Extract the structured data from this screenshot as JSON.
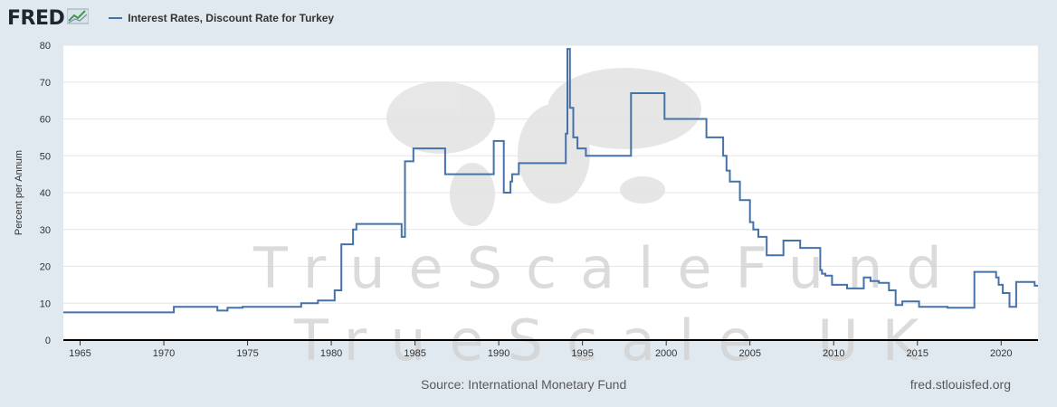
{
  "header": {
    "logo_text": "FRED",
    "logo_icon": "chart-line-icon"
  },
  "legend": {
    "label": "Interest Rates, Discount Rate for Turkey",
    "color": "#4572a7"
  },
  "footer": {
    "source": "Source: International Monetary Fund",
    "url": "fred.stlouisfed.org"
  },
  "watermark": {
    "line1": "TrueScaleFund",
    "line2": "TrueScale UK"
  },
  "chart_data": {
    "type": "line",
    "title": "Interest Rates, Discount Rate for Turkey",
    "xlabel": "",
    "ylabel": "Percent per Annum",
    "xlim": [
      1964,
      2022.2
    ],
    "ylim": [
      0,
      80
    ],
    "yticks": [
      0,
      10,
      20,
      30,
      40,
      50,
      60,
      70,
      80
    ],
    "xticks": [
      1965,
      1970,
      1975,
      1980,
      1985,
      1990,
      1995,
      2000,
      2005,
      2010,
      2015,
      2020
    ],
    "grid": true,
    "legend_position": "top-left",
    "step": true,
    "series": [
      {
        "name": "Interest Rates, Discount Rate for Turkey",
        "color": "#4572a7",
        "x": [
          1964.0,
          1970.6,
          1973.2,
          1973.8,
          1974.7,
          1978.2,
          1979.2,
          1980.2,
          1980.6,
          1980.8,
          1981.3,
          1981.5,
          1983.8,
          1984.2,
          1984.4,
          1984.9,
          1985.7,
          1986.8,
          1987.7,
          1989.7,
          1990.3,
          1990.7,
          1990.8,
          1990.9,
          1991.2,
          1994.0,
          1994.1,
          1994.25,
          1994.45,
          1994.7,
          1995.2,
          1995.6,
          1997.9,
          1999.9,
          2002.4,
          2003.4,
          2003.6,
          2003.8,
          2004.4,
          2005.0,
          2005.2,
          2005.5,
          2006.0,
          2007.0,
          2008.0,
          2009.2,
          2009.3,
          2009.5,
          2009.9,
          2010.8,
          2011.8,
          2012.2,
          2012.7,
          2013.3,
          2013.7,
          2014.1,
          2015.1,
          2016.8,
          2018.4,
          2019.7,
          2019.85,
          2020.1,
          2020.5,
          2020.9,
          2021.3,
          2022.0
        ],
        "values": [
          7.5,
          9.0,
          8.0,
          8.75,
          9.0,
          10.0,
          10.75,
          13.5,
          26.0,
          26.0,
          30.0,
          31.5,
          31.5,
          28.0,
          48.5,
          52.0,
          52.0,
          45.0,
          45.0,
          54.0,
          40.0,
          43.0,
          45.0,
          45.0,
          48.0,
          56.0,
          79.0,
          63.0,
          55.0,
          52.0,
          50.0,
          50.0,
          67.0,
          60.0,
          55.0,
          50.0,
          46.0,
          43.0,
          38.0,
          32.0,
          30.0,
          28.0,
          23.0,
          27.0,
          25.0,
          19.0,
          18.0,
          17.5,
          15.0,
          14.0,
          17.0,
          16.0,
          15.5,
          13.5,
          9.5,
          10.5,
          9.0,
          8.75,
          18.5,
          17.0,
          15.0,
          12.75,
          9.0,
          15.75,
          15.75,
          14.75
        ]
      }
    ]
  }
}
